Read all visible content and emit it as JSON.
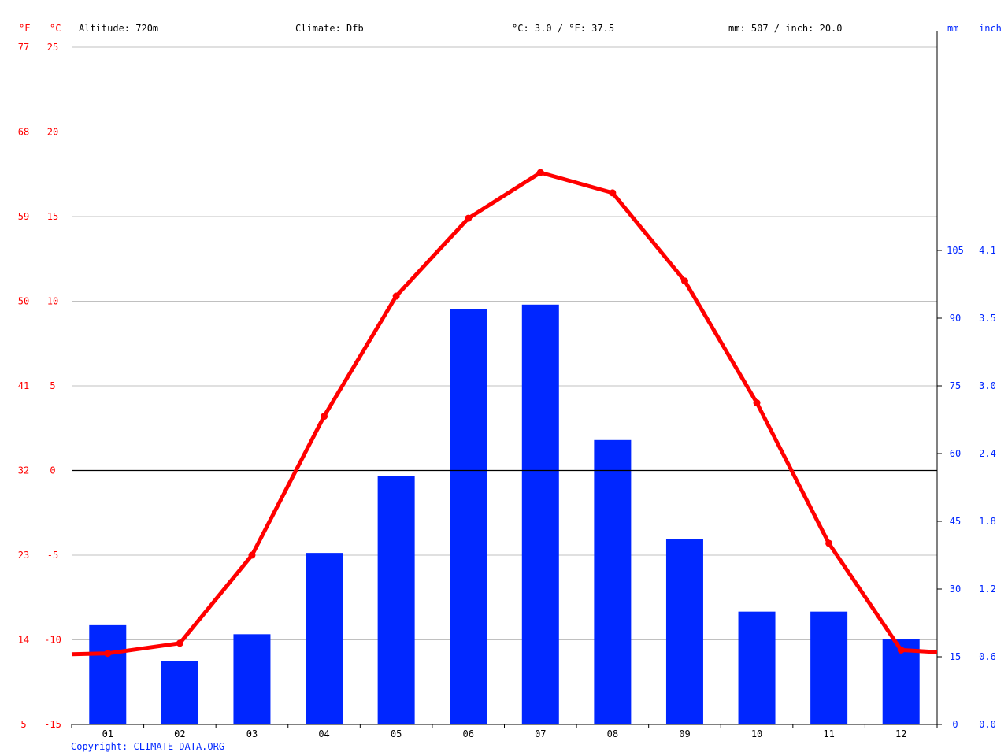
{
  "header": {
    "unit_f": "°F",
    "unit_c": "°C",
    "altitude": "Altitude: 720m",
    "climate": "Climate: Dfb",
    "temp_avg": "°C: 3.0 / °F: 37.5",
    "precip_total": "mm: 507 / inch: 20.0",
    "unit_mm": "mm",
    "unit_inch": "inch"
  },
  "footer": {
    "copyright": "Copyright: CLIMATE-DATA.ORG"
  },
  "colors": {
    "temperature": "#ff0000",
    "precipitation": "#0026ff",
    "grid": "#c0c0c0",
    "zero_line": "#000000"
  },
  "chart_data": {
    "type": "bar",
    "categories": [
      "01",
      "02",
      "03",
      "04",
      "05",
      "06",
      "07",
      "08",
      "09",
      "10",
      "11",
      "12"
    ],
    "series": [
      {
        "type": "bar",
        "axis": "right",
        "values": [
          22,
          14,
          20,
          38,
          55,
          92,
          93,
          63,
          41,
          25,
          25,
          19
        ]
      },
      {
        "type": "line",
        "axis": "left",
        "values": [
          -10.8,
          -10.2,
          -5.0,
          3.2,
          10.3,
          14.9,
          17.6,
          16.4,
          11.2,
          4.0,
          -4.3,
          -10.6
        ]
      }
    ],
    "left_axis": {
      "ylim": [
        -15,
        25
      ],
      "ticks_c": [
        "25",
        "20",
        "15",
        "10",
        "5",
        "0",
        "-5",
        "-10",
        "-15"
      ],
      "ticks_f": [
        "77",
        "68",
        "59",
        "50",
        "41",
        "32",
        "23",
        "14",
        "5"
      ]
    },
    "right_axis": {
      "ylim": [
        0,
        150
      ],
      "ticks_mm": [
        "105",
        "90",
        "75",
        "60",
        "45",
        "30",
        "15",
        "0"
      ],
      "ticks_inch": [
        "4.1",
        "3.5",
        "3.0",
        "2.4",
        "1.8",
        "1.2",
        "0.6",
        "0.0"
      ]
    },
    "grid": true
  }
}
